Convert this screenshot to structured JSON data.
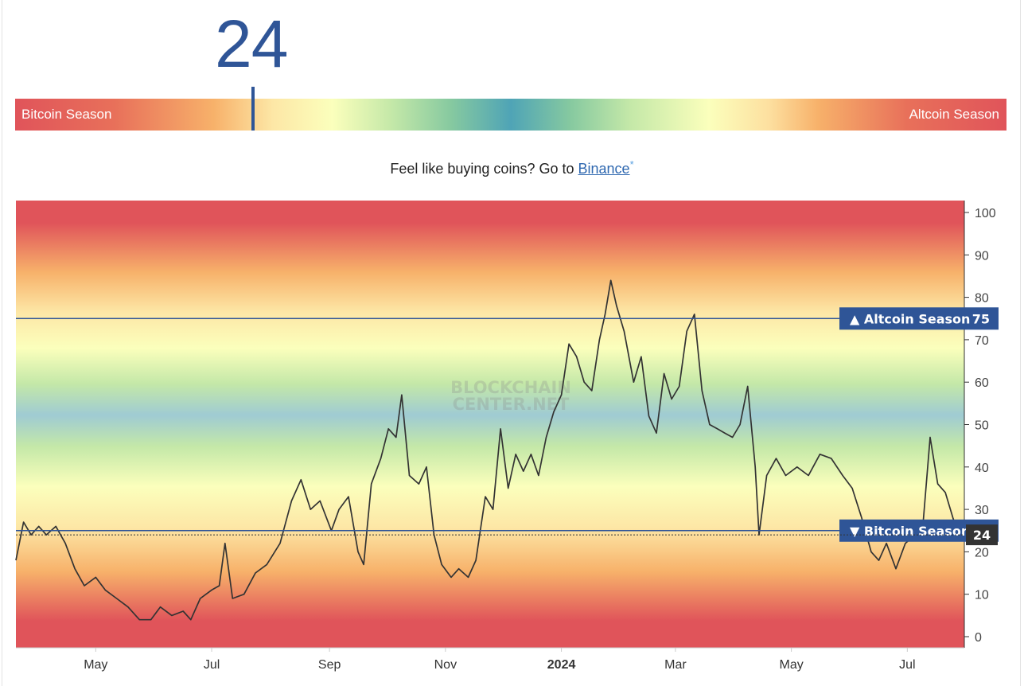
{
  "header": {
    "index_value": "24",
    "scale_left_label": "Bitcoin Season",
    "scale_right_label": "Altcoin Season",
    "indicator_fraction": 0.24
  },
  "promo": {
    "text": "Feel like buying coins? Go to ",
    "link_label": "Binance",
    "asterisk": "*"
  },
  "watermark": {
    "line1": "BLOCKCHAIN",
    "line2": "CENTER.NET"
  },
  "colors": {
    "accent": "#2f5597",
    "line": "#333333",
    "current_badge": "#333333",
    "bitcoin_red": "#e0545a",
    "neutral_blue": "#9fcbd3"
  },
  "chart_data": {
    "type": "line",
    "title": "",
    "xlabel": "",
    "ylabel": "",
    "ylim": [
      -3,
      102
    ],
    "y_ticks": [
      "0",
      "10",
      "20",
      "30",
      "40",
      "50",
      "60",
      "70",
      "80",
      "90",
      "100"
    ],
    "x_ticks": [
      {
        "label": "May",
        "date": "2023-05-01"
      },
      {
        "label": "Jul",
        "date": "2023-07-01"
      },
      {
        "label": "Sep",
        "date": "2023-09-01"
      },
      {
        "label": "Nov",
        "date": "2023-11-01"
      },
      {
        "label": "2024",
        "date": "2024-01-01",
        "bold": true
      },
      {
        "label": "Mar",
        "date": "2024-03-01"
      },
      {
        "label": "May",
        "date": "2024-05-01"
      },
      {
        "label": "Jul",
        "date": "2024-07-01"
      }
    ],
    "xlim": [
      "2023-03-20",
      "2024-07-31"
    ],
    "thresholds": [
      {
        "label": "▲ Altcoin Season",
        "value": "75",
        "y": 75
      },
      {
        "label": "▼ Bitcoin Season",
        "value": "25",
        "y": 25
      }
    ],
    "current": {
      "label": "24",
      "y": 24
    },
    "grid": false,
    "legend": "none",
    "series": [
      {
        "points": [
          [
            "2023-03-20",
            18
          ],
          [
            "2023-03-24",
            27
          ],
          [
            "2023-03-28",
            24
          ],
          [
            "2023-04-01",
            26
          ],
          [
            "2023-04-05",
            24
          ],
          [
            "2023-04-10",
            26
          ],
          [
            "2023-04-15",
            22
          ],
          [
            "2023-04-20",
            16
          ],
          [
            "2023-04-25",
            12
          ],
          [
            "2023-05-01",
            14
          ],
          [
            "2023-05-06",
            11
          ],
          [
            "2023-05-12",
            9
          ],
          [
            "2023-05-18",
            7
          ],
          [
            "2023-05-24",
            4
          ],
          [
            "2023-05-30",
            4
          ],
          [
            "2023-06-04",
            7
          ],
          [
            "2023-06-10",
            5
          ],
          [
            "2023-06-16",
            6
          ],
          [
            "2023-06-20",
            4
          ],
          [
            "2023-06-25",
            9
          ],
          [
            "2023-07-01",
            11
          ],
          [
            "2023-07-05",
            12
          ],
          [
            "2023-07-08",
            22
          ],
          [
            "2023-07-12",
            9
          ],
          [
            "2023-07-18",
            10
          ],
          [
            "2023-07-24",
            15
          ],
          [
            "2023-07-30",
            17
          ],
          [
            "2023-08-06",
            22
          ],
          [
            "2023-08-12",
            32
          ],
          [
            "2023-08-17",
            37
          ],
          [
            "2023-08-22",
            30
          ],
          [
            "2023-08-27",
            32
          ],
          [
            "2023-09-02",
            25
          ],
          [
            "2023-09-06",
            30
          ],
          [
            "2023-09-11",
            33
          ],
          [
            "2023-09-16",
            20
          ],
          [
            "2023-09-19",
            17
          ],
          [
            "2023-09-23",
            36
          ],
          [
            "2023-09-28",
            42
          ],
          [
            "2023-10-02",
            49
          ],
          [
            "2023-10-06",
            47
          ],
          [
            "2023-10-09",
            57
          ],
          [
            "2023-10-13",
            38
          ],
          [
            "2023-10-18",
            36
          ],
          [
            "2023-10-22",
            40
          ],
          [
            "2023-10-26",
            24
          ],
          [
            "2023-10-30",
            17
          ],
          [
            "2023-11-04",
            14
          ],
          [
            "2023-11-08",
            16
          ],
          [
            "2023-11-13",
            14
          ],
          [
            "2023-11-17",
            18
          ],
          [
            "2023-11-22",
            33
          ],
          [
            "2023-11-26",
            30
          ],
          [
            "2023-11-30",
            49
          ],
          [
            "2023-12-04",
            35
          ],
          [
            "2023-12-08",
            43
          ],
          [
            "2023-12-12",
            39
          ],
          [
            "2023-12-16",
            43
          ],
          [
            "2023-12-20",
            38
          ],
          [
            "2023-12-24",
            47
          ],
          [
            "2023-12-28",
            53
          ],
          [
            "2024-01-01",
            57
          ],
          [
            "2024-01-05",
            69
          ],
          [
            "2024-01-09",
            66
          ],
          [
            "2024-01-13",
            60
          ],
          [
            "2024-01-17",
            58
          ],
          [
            "2024-01-21",
            70
          ],
          [
            "2024-01-24",
            76
          ],
          [
            "2024-01-27",
            84
          ],
          [
            "2024-01-30",
            78
          ],
          [
            "2024-02-03",
            72
          ],
          [
            "2024-02-08",
            60
          ],
          [
            "2024-02-12",
            66
          ],
          [
            "2024-02-16",
            52
          ],
          [
            "2024-02-20",
            48
          ],
          [
            "2024-02-24",
            62
          ],
          [
            "2024-02-28",
            56
          ],
          [
            "2024-03-03",
            59
          ],
          [
            "2024-03-07",
            72
          ],
          [
            "2024-03-11",
            76
          ],
          [
            "2024-03-15",
            58
          ],
          [
            "2024-03-19",
            50
          ],
          [
            "2024-03-23",
            49
          ],
          [
            "2024-03-27",
            48
          ],
          [
            "2024-03-31",
            47
          ],
          [
            "2024-04-04",
            50
          ],
          [
            "2024-04-08",
            59
          ],
          [
            "2024-04-12",
            40
          ],
          [
            "2024-04-14",
            24
          ],
          [
            "2024-04-18",
            38
          ],
          [
            "2024-04-23",
            42
          ],
          [
            "2024-04-28",
            38
          ],
          [
            "2024-05-04",
            40
          ],
          [
            "2024-05-10",
            38
          ],
          [
            "2024-05-16",
            43
          ],
          [
            "2024-05-22",
            42
          ],
          [
            "2024-05-28",
            38
          ],
          [
            "2024-06-02",
            35
          ],
          [
            "2024-06-07",
            28
          ],
          [
            "2024-06-12",
            20
          ],
          [
            "2024-06-16",
            18
          ],
          [
            "2024-06-20",
            22
          ],
          [
            "2024-06-25",
            16
          ],
          [
            "2024-06-30",
            22
          ],
          [
            "2024-07-05",
            24
          ],
          [
            "2024-07-09",
            25
          ],
          [
            "2024-07-13",
            47
          ],
          [
            "2024-07-17",
            36
          ],
          [
            "2024-07-21",
            34
          ],
          [
            "2024-07-25",
            28
          ],
          [
            "2024-07-28",
            24
          ]
        ]
      }
    ]
  }
}
